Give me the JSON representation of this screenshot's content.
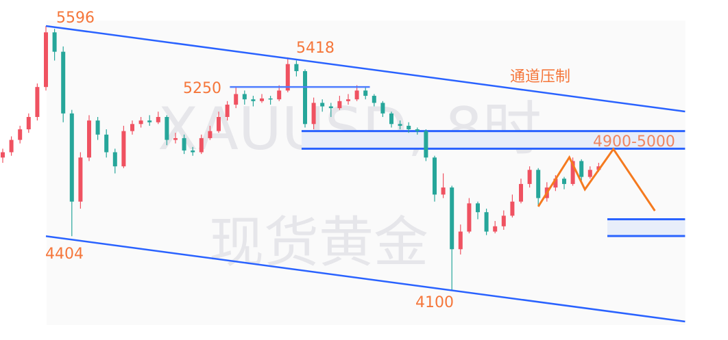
{
  "chart_data": {
    "type": "candlestick",
    "title": "",
    "watermark": {
      "line1": "XAUUSD, 8时",
      "line2": "现货黄金"
    },
    "colors": {
      "up": "#ef5261",
      "down": "#26a69a",
      "trendline": "#2962ff",
      "zone_fill": "#e8eefa",
      "forecast": "#f57a1f",
      "label": "#f5763a"
    },
    "candles": [
      [
        4850,
        4900,
        4820,
        4880
      ],
      [
        4880,
        4970,
        4860,
        4950
      ],
      [
        4950,
        5030,
        4930,
        5010
      ],
      [
        5010,
        5100,
        4990,
        5080
      ],
      [
        5080,
        5270,
        5060,
        5250
      ],
      [
        5250,
        5596,
        5230,
        5560
      ],
      [
        5560,
        5580,
        5400,
        5450
      ],
      [
        5450,
        5480,
        5050,
        5100
      ],
      [
        5100,
        5120,
        4404,
        4600
      ],
      [
        4600,
        4880,
        4560,
        4850
      ],
      [
        4850,
        5090,
        4830,
        5060
      ],
      [
        5060,
        5080,
        4950,
        4980
      ],
      [
        4980,
        5010,
        4850,
        4880
      ],
      [
        4880,
        4900,
        4760,
        4800
      ],
      [
        4800,
        5030,
        4790,
        5000
      ],
      [
        5000,
        5060,
        4980,
        5040
      ],
      [
        5040,
        5080,
        5020,
        5060
      ],
      [
        5060,
        5090,
        5030,
        5050
      ],
      [
        5050,
        5110,
        5040,
        5080
      ],
      [
        5080,
        5090,
        4920,
        4950
      ],
      [
        4950,
        4990,
        4930,
        4960
      ],
      [
        4960,
        4980,
        4870,
        4890
      ],
      [
        4890,
        4910,
        4860,
        4880
      ],
      [
        4880,
        4980,
        4870,
        4960
      ],
      [
        4960,
        5030,
        4950,
        5000
      ],
      [
        5000,
        5110,
        4990,
        5080
      ],
      [
        5080,
        5170,
        5060,
        5150
      ],
      [
        5150,
        5250,
        5130,
        5210
      ],
      [
        5210,
        5230,
        5150,
        5180
      ],
      [
        5180,
        5200,
        5140,
        5170
      ],
      [
        5170,
        5210,
        5160,
        5185
      ],
      [
        5185,
        5200,
        5150,
        5180
      ],
      [
        5180,
        5260,
        5170,
        5230
      ],
      [
        5230,
        5418,
        5220,
        5380
      ],
      [
        5380,
        5400,
        5310,
        5340
      ],
      [
        5340,
        5350,
        5020,
        5040
      ],
      [
        5040,
        5190,
        5010,
        5160
      ],
      [
        5160,
        5180,
        5110,
        5140
      ],
      [
        5140,
        5160,
        5080,
        5130
      ],
      [
        5130,
        5200,
        5120,
        5170
      ],
      [
        5170,
        5210,
        5150,
        5180
      ],
      [
        5180,
        5260,
        5170,
        5230
      ],
      [
        5230,
        5250,
        5180,
        5200
      ],
      [
        5200,
        5210,
        5140,
        5160
      ],
      [
        5160,
        5170,
        5080,
        5100
      ],
      [
        5100,
        5110,
        5020,
        5040
      ],
      [
        5040,
        5060,
        5010,
        5030
      ],
      [
        5030,
        5050,
        4990,
        5010
      ],
      [
        5010,
        5020,
        4980,
        5000
      ],
      [
        5000,
        5010,
        4830,
        4850
      ],
      [
        4850,
        4860,
        4600,
        4640
      ],
      [
        4640,
        4760,
        4620,
        4680
      ],
      [
        4680,
        4690,
        4100,
        4330
      ],
      [
        4330,
        4470,
        4300,
        4430
      ],
      [
        4430,
        4620,
        4420,
        4590
      ],
      [
        4590,
        4600,
        4500,
        4540
      ],
      [
        4540,
        4560,
        4410,
        4430
      ],
      [
        4430,
        4490,
        4420,
        4460
      ],
      [
        4460,
        4550,
        4440,
        4520
      ],
      [
        4520,
        4640,
        4510,
        4600
      ],
      [
        4600,
        4730,
        4590,
        4700
      ],
      [
        4700,
        4800,
        4680,
        4780
      ],
      [
        4780,
        4790,
        4580,
        4620
      ],
      [
        4620,
        4710,
        4600,
        4680
      ],
      [
        4680,
        4750,
        4660,
        4730
      ],
      [
        4730,
        4740,
        4670,
        4700
      ],
      [
        4700,
        4850,
        4690,
        4830
      ],
      [
        4830,
        4840,
        4720,
        4740
      ],
      [
        4740,
        4800,
        4730,
        4780
      ],
      [
        4780,
        4820,
        4770,
        4800
      ]
    ],
    "annotations": {
      "upper_channel": {
        "from": [
          5,
          5596
        ],
        "to": [
          79,
          5111
        ]
      },
      "lower_channel": {
        "from": [
          5,
          4404
        ],
        "to": [
          79,
          3920
        ]
      },
      "resistance_line": {
        "value": 5250,
        "from": 26.3,
        "to": 42.5
      },
      "zone_upper": {
        "low": 4900,
        "high": 5000,
        "from": 34.6,
        "to": 79
      },
      "zone_lower": {
        "low": 4405,
        "high": 4500,
        "from": 70,
        "to": 79
      },
      "forecast_path": [
        [
          62,
          4572
        ],
        [
          65.6,
          4851
        ],
        [
          67.4,
          4669
        ],
        [
          70.7,
          4898
        ],
        [
          75.5,
          4548
        ]
      ]
    },
    "labels": {
      "high": "5596",
      "second_high": "5418",
      "resistance": "5250",
      "channel_note": "通道压制",
      "zone": "4900-5000",
      "low": "4404",
      "second_low": "4100"
    }
  }
}
